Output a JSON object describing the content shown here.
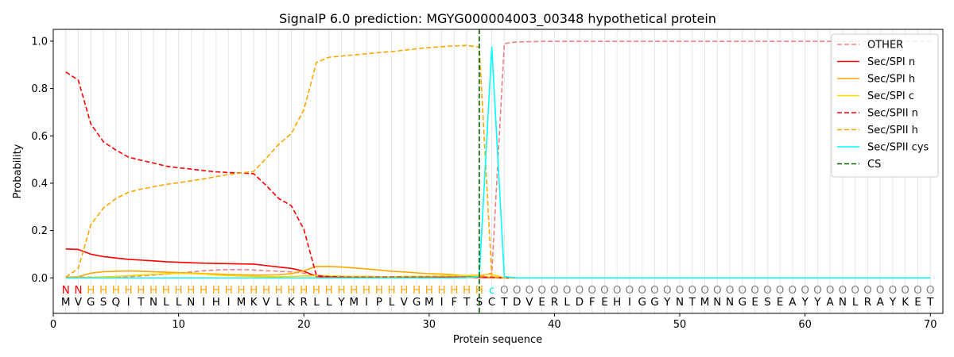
{
  "chart_data": {
    "type": "line",
    "title": "SignalP 6.0 prediction: MGYG000004003_00348 hypothetical protein",
    "xlabel": "Protein sequence",
    "ylabel": "Probability",
    "xlim": [
      0,
      71
    ],
    "ylim": [
      -0.15,
      1.05
    ],
    "x_ticks": [
      "0",
      "10",
      "20",
      "30",
      "40",
      "50",
      "60",
      "70"
    ],
    "y_ticks": [
      "0.0",
      "0.2",
      "0.4",
      "0.6",
      "0.8",
      "1.0"
    ],
    "grid": "vertical lines at each residue",
    "legend_position": "top-right",
    "sequence": [
      "M",
      "V",
      "G",
      "S",
      "Q",
      "I",
      "T",
      "N",
      "L",
      "L",
      "N",
      "I",
      "H",
      "I",
      "M",
      "K",
      "V",
      "L",
      "K",
      "R",
      "L",
      "L",
      "Y",
      "M",
      "I",
      "P",
      "L",
      "V",
      "G",
      "M",
      "I",
      "F",
      "T",
      "S",
      "C",
      "T",
      "D",
      "V",
      "E",
      "R",
      "L",
      "D",
      "F",
      "E",
      "H",
      "I",
      "G",
      "G",
      "Y",
      "N",
      "T",
      "M",
      "N",
      "N",
      "G",
      "E",
      "S",
      "E",
      "A",
      "Y",
      "Y",
      "A",
      "N",
      "L",
      "R",
      "A",
      "Y",
      "K",
      "E",
      "T"
    ],
    "annotation": [
      "N",
      "N",
      "H",
      "H",
      "H",
      "H",
      "H",
      "H",
      "H",
      "H",
      "H",
      "H",
      "H",
      "H",
      "H",
      "H",
      "H",
      "H",
      "H",
      "H",
      "H",
      "H",
      "H",
      "H",
      "H",
      "H",
      "H",
      "H",
      "H",
      "H",
      "H",
      "H",
      "H",
      "H",
      "c",
      "O",
      "O",
      "O",
      "O",
      "O",
      "O",
      "O",
      "O",
      "O",
      "O",
      "O",
      "O",
      "O",
      "O",
      "O",
      "O",
      "O",
      "O",
      "O",
      "O",
      "O",
      "O",
      "O",
      "O",
      "O",
      "O",
      "O",
      "O",
      "O",
      "O",
      "O",
      "O",
      "O",
      "O",
      "O"
    ],
    "annotation_colors": {
      "N": "#ff0000",
      "H": "#ffa500",
      "c": "#00e5ee",
      "O": "#808080"
    },
    "cleavage_site": 34,
    "series": [
      {
        "name": "OTHER",
        "color": "#f08080",
        "dash": true,
        "values": [
          0.003,
          0.003,
          0.003,
          0.003,
          0.004,
          0.005,
          0.008,
          0.012,
          0.016,
          0.02,
          0.025,
          0.03,
          0.033,
          0.035,
          0.035,
          0.033,
          0.03,
          0.028,
          0.025,
          0.02,
          0.01,
          0.008,
          0.007,
          0.006,
          0.006,
          0.005,
          0.005,
          0.005,
          0.005,
          0.005,
          0.005,
          0.005,
          0.005,
          0.005,
          0.02,
          0.99,
          0.997,
          0.998,
          0.999,
          0.999,
          0.999,
          0.999,
          0.999,
          0.999,
          0.999,
          0.999,
          0.999,
          0.999,
          0.999,
          0.999,
          0.999,
          0.999,
          0.999,
          0.999,
          0.999,
          0.999,
          0.999,
          0.999,
          0.999,
          0.999,
          0.999,
          0.999,
          0.999,
          0.999,
          0.999,
          0.999,
          0.999,
          0.999,
          0.999,
          0.999
        ]
      },
      {
        "name": "Sec/SPI n",
        "color": "#ff0000",
        "dash": false,
        "values": [
          0.122,
          0.12,
          0.1,
          0.09,
          0.084,
          0.078,
          0.075,
          0.072,
          0.068,
          0.066,
          0.064,
          0.062,
          0.061,
          0.06,
          0.059,
          0.058,
          0.052,
          0.046,
          0.04,
          0.028,
          0.006,
          0.003,
          0.002,
          0.002,
          0.002,
          0.002,
          0.002,
          0.002,
          0.002,
          0.002,
          0.002,
          0.002,
          0.002,
          0.002,
          0.001,
          0,
          0,
          0,
          0,
          0,
          0,
          0,
          0,
          0,
          0,
          0,
          0,
          0,
          0,
          0,
          0,
          0,
          0,
          0,
          0,
          0,
          0,
          0,
          0,
          0,
          0,
          0,
          0,
          0,
          0,
          0,
          0,
          0,
          0,
          0
        ]
      },
      {
        "name": "Sec/SPI h",
        "color": "#ffa500",
        "dash": false,
        "values": [
          0.002,
          0.005,
          0.02,
          0.026,
          0.028,
          0.029,
          0.028,
          0.026,
          0.024,
          0.022,
          0.02,
          0.018,
          0.016,
          0.014,
          0.013,
          0.012,
          0.012,
          0.013,
          0.018,
          0.03,
          0.048,
          0.048,
          0.046,
          0.042,
          0.038,
          0.033,
          0.028,
          0.025,
          0.021,
          0.018,
          0.016,
          0.013,
          0.008,
          0.005,
          0.002,
          0,
          0,
          0,
          0,
          0,
          0,
          0,
          0,
          0,
          0,
          0,
          0,
          0,
          0,
          0,
          0,
          0,
          0,
          0,
          0,
          0,
          0,
          0,
          0,
          0,
          0,
          0,
          0,
          0,
          0,
          0,
          0,
          0,
          0,
          0
        ]
      },
      {
        "name": "Sec/SPI c",
        "color": "#ffd700",
        "dash": false,
        "values": [
          0,
          0,
          0.002,
          0.004,
          0.006,
          0.009,
          0.012,
          0.015,
          0.018,
          0.019,
          0.018,
          0.016,
          0.012,
          0.01,
          0.008,
          0.006,
          0.005,
          0.005,
          0.006,
          0.008,
          0.009,
          0.008,
          0.007,
          0.006,
          0.006,
          0.005,
          0.005,
          0.006,
          0.006,
          0.007,
          0.008,
          0.009,
          0.01,
          0.012,
          0.015,
          0,
          0,
          0,
          0,
          0,
          0,
          0,
          0,
          0,
          0,
          0,
          0,
          0,
          0,
          0,
          0,
          0,
          0,
          0,
          0,
          0,
          0,
          0,
          0,
          0,
          0,
          0,
          0,
          0,
          0,
          0,
          0,
          0,
          0,
          0
        ]
      },
      {
        "name": "Sec/SPII n",
        "color": "#ff0000",
        "dash": true,
        "values": [
          0.87,
          0.835,
          0.65,
          0.575,
          0.54,
          0.51,
          0.497,
          0.485,
          0.472,
          0.465,
          0.46,
          0.453,
          0.448,
          0.445,
          0.443,
          0.44,
          0.39,
          0.335,
          0.305,
          0.205,
          0.01,
          0.005,
          0.004,
          0.003,
          0.003,
          0.003,
          0.003,
          0.003,
          0.003,
          0.003,
          0.003,
          0.003,
          0.003,
          0.003,
          0.003,
          0,
          0,
          0,
          0,
          0,
          0,
          0,
          0,
          0,
          0,
          0,
          0,
          0,
          0,
          0,
          0,
          0,
          0,
          0,
          0,
          0,
          0,
          0,
          0,
          0,
          0,
          0,
          0,
          0,
          0,
          0,
          0,
          0,
          0,
          0
        ]
      },
      {
        "name": "Sec/SPII h",
        "color": "#ffa500",
        "dash": true,
        "values": [
          0.003,
          0.04,
          0.225,
          0.295,
          0.335,
          0.362,
          0.375,
          0.385,
          0.395,
          0.402,
          0.41,
          0.418,
          0.428,
          0.437,
          0.443,
          0.45,
          0.505,
          0.565,
          0.61,
          0.71,
          0.91,
          0.932,
          0.937,
          0.942,
          0.947,
          0.952,
          0.956,
          0.962,
          0.968,
          0.973,
          0.977,
          0.98,
          0.982,
          0.975,
          0.005,
          0,
          0,
          0,
          0,
          0,
          0,
          0,
          0,
          0,
          0,
          0,
          0,
          0,
          0,
          0,
          0,
          0,
          0,
          0,
          0,
          0,
          0,
          0,
          0,
          0,
          0,
          0,
          0,
          0,
          0,
          0,
          0,
          0,
          0,
          0
        ]
      },
      {
        "name": "Sec/SPII cys",
        "color": "#00ffff",
        "dash": false,
        "values": [
          0,
          0,
          0,
          0,
          0,
          0,
          0,
          0,
          0,
          0,
          0,
          0,
          0,
          0,
          0,
          0,
          0,
          0,
          0,
          0,
          0,
          0,
          0,
          0,
          0,
          0,
          0,
          0,
          0,
          0,
          0,
          0,
          0.001,
          0.005,
          0.975,
          0.005,
          0,
          0,
          0,
          0,
          0,
          0,
          0,
          0,
          0,
          0,
          0,
          0,
          0,
          0,
          0,
          0,
          0,
          0,
          0,
          0,
          0,
          0,
          0,
          0,
          0,
          0,
          0,
          0,
          0,
          0,
          0,
          0,
          0,
          0
        ]
      }
    ],
    "legend": [
      "OTHER",
      "Sec/SPI n",
      "Sec/SPI h",
      "Sec/SPI c",
      "Sec/SPII n",
      "Sec/SPII h",
      "Sec/SPII cys",
      "CS"
    ],
    "cs_color": "#006400"
  }
}
